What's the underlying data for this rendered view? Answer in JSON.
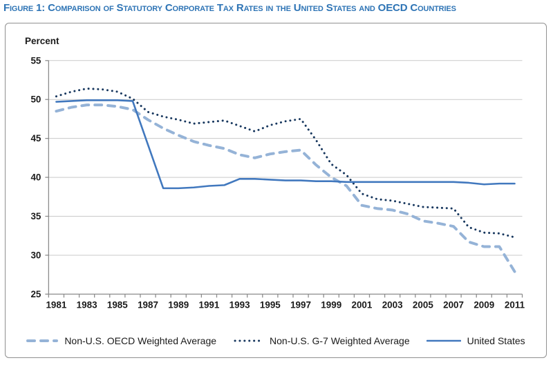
{
  "header": {
    "title": "Figure 1: Comparison of Statutory Corporate Tax Rates in the United States and OECD Countries"
  },
  "chart_data": {
    "type": "line",
    "title": "Figure 1: Comparison of Statutory Corporate Tax Rates in the United States and OECD Countries",
    "xlabel": "",
    "ylabel": "Percent",
    "ylim": [
      25,
      55
    ],
    "yticks": [
      25,
      30,
      35,
      40,
      45,
      50,
      55
    ],
    "grid": true,
    "legend_position": "bottom",
    "x": [
      1981,
      1982,
      1983,
      1984,
      1985,
      1986,
      1987,
      1988,
      1989,
      1990,
      1991,
      1992,
      1993,
      1994,
      1995,
      1996,
      1997,
      1998,
      1999,
      2000,
      2001,
      2002,
      2003,
      2004,
      2005,
      2006,
      2007,
      2008,
      2009,
      2010,
      2011
    ],
    "xtick_labels": [
      "1981",
      "1983",
      "1985",
      "1987",
      "1989",
      "1991",
      "1993",
      "1995",
      "1997",
      "1999",
      "2001",
      "2003",
      "2005",
      "2007",
      "2009",
      "2011"
    ],
    "series": [
      {
        "name": "Non-U.S. OECD Weighted Average",
        "style": "dashed",
        "color": "#95B3D7",
        "values": [
          48.5,
          49.0,
          49.3,
          49.3,
          49.1,
          48.7,
          47.4,
          46.3,
          45.4,
          44.6,
          44.1,
          43.7,
          42.9,
          42.5,
          43.0,
          43.3,
          43.5,
          41.6,
          40.0,
          38.9,
          36.4,
          36.0,
          35.8,
          35.3,
          34.4,
          34.1,
          33.7,
          31.7,
          31.1,
          31.1,
          27.9
        ]
      },
      {
        "name": "Non-U.S. G-7 Weighted Average",
        "style": "dotted",
        "color": "#17375E",
        "values": [
          50.4,
          51.0,
          51.4,
          51.3,
          51.0,
          50.1,
          48.4,
          47.8,
          47.4,
          46.9,
          47.1,
          47.3,
          46.6,
          45.9,
          46.7,
          47.2,
          47.5,
          44.8,
          41.7,
          40.3,
          37.9,
          37.2,
          37.0,
          36.6,
          36.2,
          36.1,
          36.0,
          33.6,
          32.9,
          32.8,
          32.3
        ]
      },
      {
        "name": "United States",
        "style": "solid",
        "color": "#4178BE",
        "values": [
          49.7,
          49.8,
          49.9,
          49.9,
          49.9,
          49.8,
          44.2,
          38.6,
          38.6,
          38.7,
          38.9,
          39.0,
          39.8,
          39.8,
          39.7,
          39.6,
          39.6,
          39.5,
          39.5,
          39.4,
          39.4,
          39.4,
          39.4,
          39.4,
          39.4,
          39.4,
          39.4,
          39.3,
          39.1,
          39.2,
          39.2
        ]
      }
    ],
    "axis_color": "#8C8C8C",
    "gridline_color": "#C9C9C9"
  }
}
